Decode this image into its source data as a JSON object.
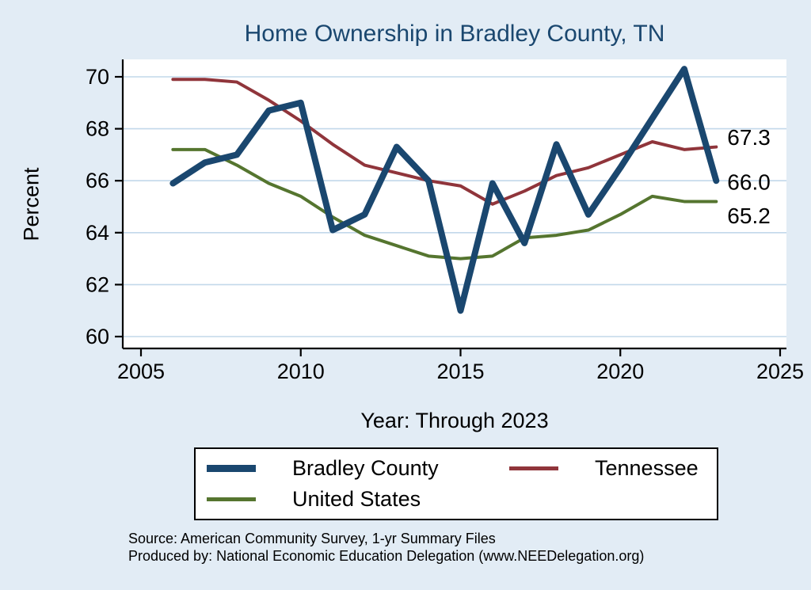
{
  "title": "Home Ownership in Bradley County, TN",
  "axes": {
    "ylabel": "Percent",
    "xlabel": "Year: Through 2023"
  },
  "notes": {
    "source": "Source: American Community Survey, 1-yr Summary Files",
    "produced_by": "Produced by: National Economic Education Delegation (www.NEEDelegation.org)"
  },
  "colors": {
    "background": "#e2ecf5",
    "title": "#1a476f",
    "grid": "#c2d8ea",
    "axis": "#000000",
    "bradley_county": "#1a476f",
    "tennessee": "#90353b",
    "united_states": "#55752f"
  },
  "legend": {
    "items": [
      {
        "label": "Bradley County",
        "color_key": "bradley_county"
      },
      {
        "label": "Tennessee",
        "color_key": "tennessee"
      },
      {
        "label": "United States",
        "color_key": "united_states"
      }
    ]
  },
  "chart_data": {
    "type": "line",
    "title": "Home Ownership in Bradley County, TN",
    "xlabel": "Year: Through 2023",
    "ylabel": "Percent",
    "xlim": [
      2005,
      2025
    ],
    "ylim": [
      60,
      70
    ],
    "xticks": [
      2005,
      2010,
      2015,
      2020,
      2025
    ],
    "yticks": [
      60,
      62,
      64,
      66,
      68,
      70
    ],
    "grid": true,
    "legend_position": "bottom",
    "x": [
      2006,
      2007,
      2008,
      2009,
      2010,
      2011,
      2012,
      2013,
      2014,
      2015,
      2016,
      2017,
      2018,
      2019,
      2020,
      2021,
      2022,
      2023
    ],
    "series": [
      {
        "name": "Bradley County",
        "color_key": "bradley_county",
        "width": 8,
        "values": [
          65.9,
          66.7,
          67.0,
          68.7,
          69.0,
          64.1,
          64.7,
          67.3,
          66.0,
          61.0,
          65.9,
          63.6,
          67.4,
          64.7,
          66.5,
          68.4,
          70.3,
          66.0
        ],
        "end_label": "66.0"
      },
      {
        "name": "Tennessee",
        "color_key": "tennessee",
        "width": 4,
        "values": [
          69.9,
          69.9,
          69.8,
          69.1,
          68.3,
          67.4,
          66.6,
          66.3,
          66.0,
          65.8,
          65.1,
          65.6,
          66.2,
          66.5,
          67.0,
          67.5,
          67.2,
          67.3
        ],
        "end_label": "67.3"
      },
      {
        "name": "United States",
        "color_key": "united_states",
        "width": 4,
        "values": [
          67.2,
          67.2,
          66.6,
          65.9,
          65.4,
          64.6,
          63.9,
          63.5,
          63.1,
          63.0,
          63.1,
          63.8,
          63.9,
          64.1,
          64.7,
          65.4,
          65.2,
          65.2
        ],
        "end_label": "65.2"
      }
    ]
  }
}
